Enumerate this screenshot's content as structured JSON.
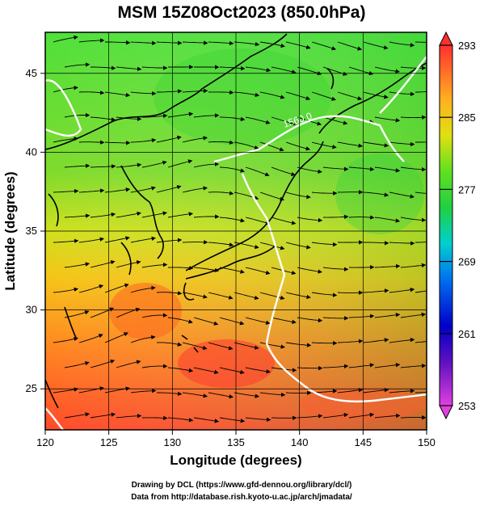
{
  "title": "MSM 15Z08Oct2023 (850.0hPa)",
  "x_axis": {
    "label": "Longitude (degrees)",
    "ticks": [
      120,
      125,
      130,
      135,
      140,
      145,
      150
    ]
  },
  "y_axis": {
    "label": "Latitude  (degrees)",
    "ticks": [
      25,
      30,
      35,
      40,
      45
    ]
  },
  "colorbar": {
    "ticks": [
      293,
      285,
      277,
      269,
      261,
      253
    ]
  },
  "contour": {
    "label": "1560.0"
  },
  "credits": {
    "line1": "Drawing by DCL (https://www.gfd-dennou.org/library/dcl/)",
    "line2": "Data from http://database.rish.kyoto-u.ac.jp/arch/jmadata/"
  },
  "map_data": {
    "type": "geographic-field",
    "lon_range": [
      120,
      150
    ],
    "lat_range": [
      22.4,
      47.6
    ],
    "color_range": [
      253,
      293
    ],
    "colors": {
      "cold": "#e040e0",
      "cool": "#0000c8",
      "mid": "#00c0e0",
      "warm": "#20e040",
      "hot": "#ffa020",
      "max": "#ff3030",
      "contour": "#ffffff",
      "coast": "#000000",
      "streamline": "#000000"
    }
  }
}
